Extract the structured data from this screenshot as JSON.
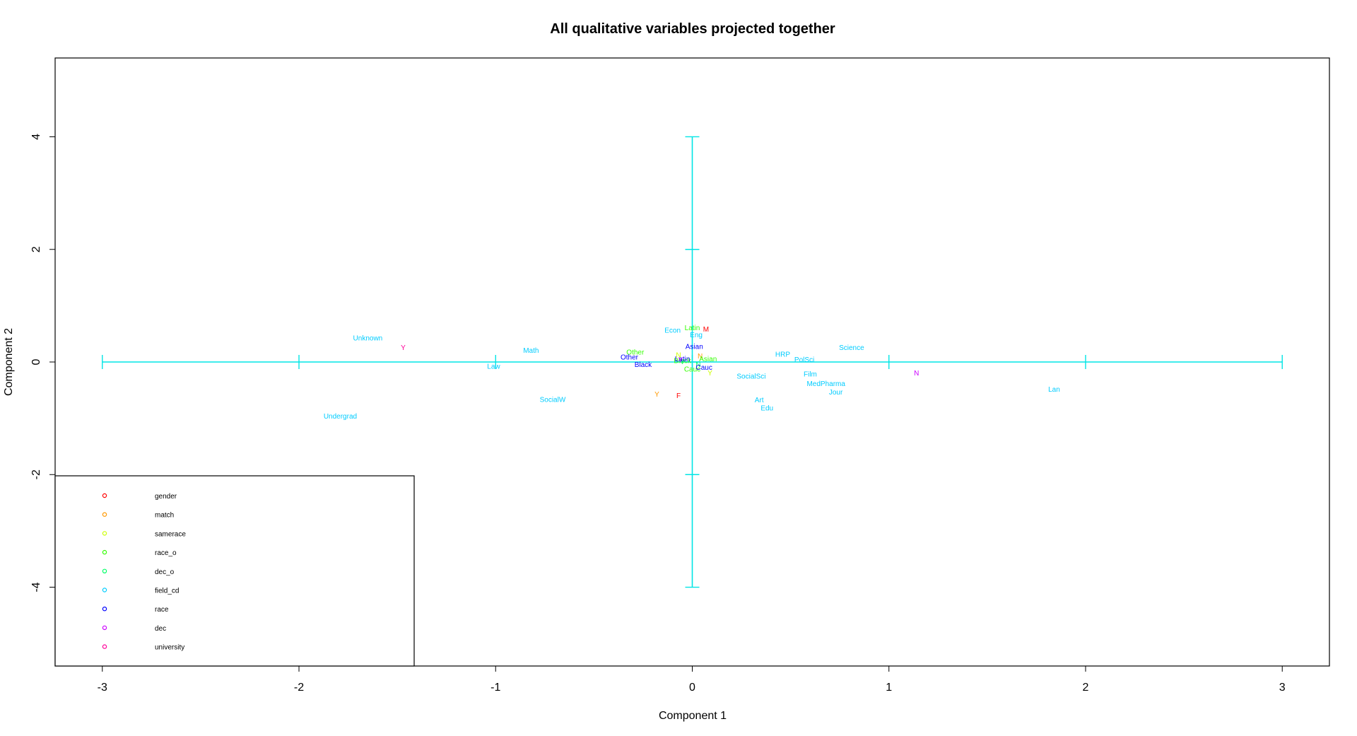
{
  "chart_data": {
    "type": "scatter",
    "title": "All qualitative variables projected together",
    "xlabel": "Component 1",
    "ylabel": "Component 2",
    "xlim": [
      -3.24,
      3.24
    ],
    "ylim": [
      -5.4,
      5.4
    ],
    "xticks": [
      -3,
      -2,
      -1,
      0,
      1,
      2,
      3
    ],
    "yticks": [
      -4,
      -2,
      0,
      2,
      4
    ],
    "grid": false,
    "legend_position": "bottom-left",
    "crosshair": {
      "color": "#00e5e5",
      "x_range": [
        -3,
        3
      ],
      "y_range": [
        -4,
        4
      ]
    },
    "series": [
      {
        "name": "gender",
        "color": "#ff0000",
        "points": [
          {
            "label": "M",
            "x": 0.07,
            "y": 0.58
          },
          {
            "label": "F",
            "x": -0.07,
            "y": -0.6
          }
        ]
      },
      {
        "name": "match",
        "color": "#ff9900",
        "points": [
          {
            "label": "Y",
            "x": -0.18,
            "y": -0.58
          },
          {
            "label": "N",
            "x": 0.04,
            "y": 0.1
          }
        ]
      },
      {
        "name": "samerace",
        "color": "#ccff00",
        "points": [
          {
            "label": "Y",
            "x": 0.09,
            "y": -0.2
          },
          {
            "label": "N",
            "x": -0.07,
            "y": 0.12
          }
        ]
      },
      {
        "name": "race_o",
        "color": "#33ff00",
        "points": [
          {
            "label": "Latin",
            "x": 0.0,
            "y": 0.6
          },
          {
            "label": "Other",
            "x": -0.29,
            "y": 0.17
          },
          {
            "label": "Asian",
            "x": 0.08,
            "y": 0.05
          },
          {
            "label": "Black",
            "x": -0.05,
            "y": 0.02
          },
          {
            "label": "Cauc",
            "x": 0.0,
            "y": -0.13
          }
        ]
      },
      {
        "name": "dec_o",
        "color": "#00ff66",
        "points": [
          {
            "label": "Y",
            "x": -0.05,
            "y": 0.0
          },
          {
            "label": "N",
            "x": 0.03,
            "y": -0.05
          }
        ]
      },
      {
        "name": "field_cd",
        "color": "#00ccff",
        "points": [
          {
            "label": "Unknown",
            "x": -1.65,
            "y": 0.42
          },
          {
            "label": "Math",
            "x": -0.82,
            "y": 0.2
          },
          {
            "label": "Law",
            "x": -1.01,
            "y": -0.08
          },
          {
            "label": "SocialW",
            "x": -0.71,
            "y": -0.67
          },
          {
            "label": "Undergrad",
            "x": -1.79,
            "y": -0.97
          },
          {
            "label": "Econ",
            "x": -0.1,
            "y": 0.56
          },
          {
            "label": "Eng",
            "x": 0.02,
            "y": 0.48
          },
          {
            "label": "HRP",
            "x": 0.46,
            "y": 0.13
          },
          {
            "label": "PolSci",
            "x": 0.57,
            "y": 0.04
          },
          {
            "label": "Science",
            "x": 0.81,
            "y": 0.25
          },
          {
            "label": "SocialSci",
            "x": 0.3,
            "y": -0.26
          },
          {
            "label": "Film",
            "x": 0.6,
            "y": -0.22
          },
          {
            "label": "MedPharma",
            "x": 0.68,
            "y": -0.39
          },
          {
            "label": "Jour",
            "x": 0.73,
            "y": -0.54
          },
          {
            "label": "Art",
            "x": 0.34,
            "y": -0.68
          },
          {
            "label": "Edu",
            "x": 0.38,
            "y": -0.82
          },
          {
            "label": "Lan",
            "x": 1.84,
            "y": -0.49
          }
        ]
      },
      {
        "name": "race",
        "color": "#0000ff",
        "points": [
          {
            "label": "Asian",
            "x": 0.01,
            "y": 0.27
          },
          {
            "label": "Other",
            "x": -0.32,
            "y": 0.08
          },
          {
            "label": "Latin",
            "x": -0.05,
            "y": 0.05
          },
          {
            "label": "Black",
            "x": -0.25,
            "y": -0.05
          },
          {
            "label": "Cauc",
            "x": 0.06,
            "y": -0.1
          }
        ]
      },
      {
        "name": "dec",
        "color": "#cc00ff",
        "points": [
          {
            "label": "N",
            "x": 1.14,
            "y": -0.2
          },
          {
            "label": "Y",
            "x": -0.06,
            "y": 0.03
          }
        ]
      },
      {
        "name": "university",
        "color": "#ff0099",
        "points": [
          {
            "label": "Y",
            "x": -1.47,
            "y": 0.25
          }
        ]
      }
    ]
  }
}
